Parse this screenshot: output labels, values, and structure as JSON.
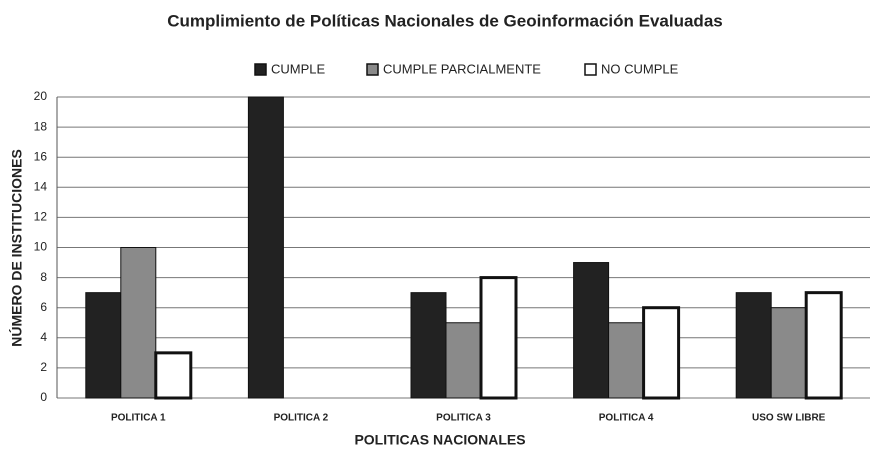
{
  "chart_data": {
    "type": "bar",
    "title": "Cumplimiento de Políticas Nacionales de Geoinformación Evaluadas",
    "x_label": "POLITICAS NACIONALES",
    "y_label": "NÚMERO DE INSTITUCIONES",
    "categories": [
      "POLITICA 1",
      "POLITICA 2",
      "POLITICA 3",
      "POLITICA 4",
      "USO SW LIBRE"
    ],
    "series": [
      {
        "name": "CUMPLE",
        "color": "#222222",
        "values": [
          7,
          20,
          7,
          9,
          7
        ]
      },
      {
        "name": "CUMPLE PARCIALMENTE",
        "color": "#8a8a8a",
        "values": [
          10,
          0,
          5,
          5,
          6
        ]
      },
      {
        "name": "NO CUMPLE",
        "color": "#ffffff",
        "values": [
          3,
          0,
          8,
          6,
          7
        ]
      }
    ],
    "ylim": [
      0,
      20
    ],
    "yticks": [
      0,
      2,
      4,
      6,
      8,
      10,
      12,
      14,
      16,
      18,
      20
    ],
    "grid": true,
    "legend": "top"
  }
}
